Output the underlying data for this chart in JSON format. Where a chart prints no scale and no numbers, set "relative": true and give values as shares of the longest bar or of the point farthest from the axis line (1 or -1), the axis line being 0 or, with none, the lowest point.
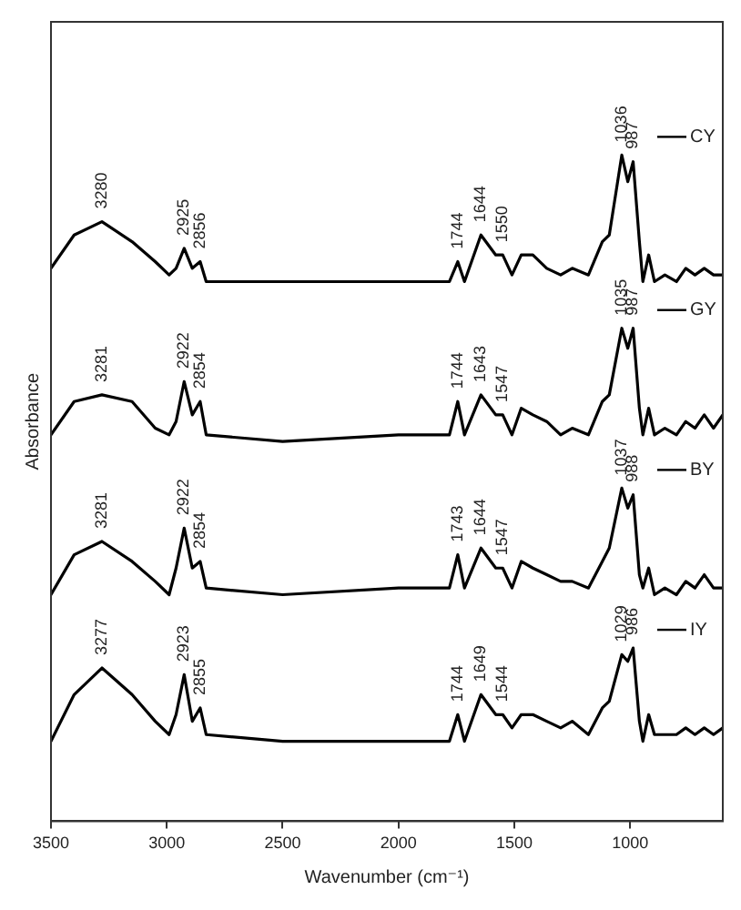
{
  "chart_data": {
    "type": "line",
    "relative": true,
    "xlabel": "Wavenumber (cm⁻¹)",
    "ylabel": "Absorbance",
    "xlim": [
      3500,
      600
    ],
    "xticks": [
      3500,
      3000,
      2500,
      2000,
      1500,
      1000
    ],
    "grid": false,
    "legend": "right",
    "x": [
      3500,
      3400,
      3280,
      3150,
      3050,
      2990,
      2960,
      2925,
      2890,
      2856,
      2830,
      2500,
      2000,
      1780,
      1744,
      1715,
      1644,
      1580,
      1550,
      1510,
      1470,
      1420,
      1360,
      1300,
      1250,
      1180,
      1120,
      1090,
      1036,
      1010,
      987,
      960,
      945,
      920,
      895,
      850,
      800,
      760,
      720,
      680,
      640,
      600
    ],
    "series": [
      {
        "name": "CY",
        "color": "#000000",
        "values": [
          0.83,
          0.88,
          0.9,
          0.87,
          0.84,
          0.82,
          0.83,
          0.86,
          0.83,
          0.84,
          0.81,
          0.81,
          0.81,
          0.81,
          0.84,
          0.81,
          0.88,
          0.85,
          0.85,
          0.82,
          0.85,
          0.85,
          0.83,
          0.82,
          0.83,
          0.82,
          0.87,
          0.88,
          1,
          0.96,
          0.99,
          0.87,
          0.81,
          0.85,
          0.81,
          0.82,
          0.81,
          0.83,
          0.82,
          0.83,
          0.82,
          0.82
        ]
      },
      {
        "name": "GY",
        "color": "#000000",
        "values": [
          0.58,
          0.63,
          0.64,
          0.63,
          0.59,
          0.58,
          0.6,
          0.66,
          0.61,
          0.63,
          0.58,
          0.57,
          0.58,
          0.58,
          0.63,
          0.58,
          0.64,
          0.61,
          0.61,
          0.58,
          0.62,
          0.61,
          0.6,
          0.58,
          0.59,
          0.58,
          0.63,
          0.64,
          0.74,
          0.71,
          0.74,
          0.62,
          0.58,
          0.62,
          0.58,
          0.59,
          0.58,
          0.6,
          0.59,
          0.61,
          0.59,
          0.61
        ]
      },
      {
        "name": "BY",
        "color": "#000000",
        "values": [
          0.34,
          0.4,
          0.42,
          0.39,
          0.36,
          0.34,
          0.38,
          0.44,
          0.38,
          0.39,
          0.35,
          0.34,
          0.35,
          0.35,
          0.4,
          0.35,
          0.41,
          0.38,
          0.38,
          0.35,
          0.39,
          0.38,
          0.37,
          0.36,
          0.36,
          0.35,
          0.39,
          0.41,
          0.5,
          0.47,
          0.49,
          0.37,
          0.35,
          0.38,
          0.34,
          0.35,
          0.34,
          0.36,
          0.35,
          0.37,
          0.35,
          0.35
        ]
      },
      {
        "name": "IY",
        "color": "#000000",
        "values": [
          0.12,
          0.19,
          0.23,
          0.19,
          0.15,
          0.13,
          0.16,
          0.22,
          0.15,
          0.17,
          0.13,
          0.12,
          0.12,
          0.12,
          0.16,
          0.12,
          0.19,
          0.16,
          0.16,
          0.14,
          0.16,
          0.16,
          0.15,
          0.14,
          0.15,
          0.13,
          0.17,
          0.18,
          0.25,
          0.24,
          0.26,
          0.15,
          0.12,
          0.16,
          0.13,
          0.13,
          0.13,
          0.14,
          0.13,
          0.14,
          0.13,
          0.14
        ]
      }
    ],
    "annotations": [
      {
        "text": "3280",
        "x": 3280,
        "y": 0.9
      },
      {
        "text": "2925",
        "x": 2925,
        "y": 0.86
      },
      {
        "text": "2856",
        "x": 2856,
        "y": 0.84
      },
      {
        "text": "1744",
        "x": 1744,
        "y": 0.84
      },
      {
        "text": "1644",
        "x": 1644,
        "y": 0.88
      },
      {
        "text": "1550",
        "x": 1550,
        "y": 0.85
      },
      {
        "text": "1036",
        "x": 1036,
        "y": 1
      },
      {
        "text": "987",
        "x": 987,
        "y": 0.99
      },
      {
        "text": "3281",
        "x": 3280,
        "y": 0.64
      },
      {
        "text": "2922",
        "x": 2925,
        "y": 0.66
      },
      {
        "text": "2854",
        "x": 2856,
        "y": 0.63
      },
      {
        "text": "1744",
        "x": 1744,
        "y": 0.63
      },
      {
        "text": "1643",
        "x": 1644,
        "y": 0.64
      },
      {
        "text": "1547",
        "x": 1550,
        "y": 0.61
      },
      {
        "text": "1035",
        "x": 1036,
        "y": 0.74
      },
      {
        "text": "987",
        "x": 987,
        "y": 0.74
      },
      {
        "text": "3281",
        "x": 3280,
        "y": 0.42
      },
      {
        "text": "2922",
        "x": 2925,
        "y": 0.44
      },
      {
        "text": "2854",
        "x": 2856,
        "y": 0.39
      },
      {
        "text": "1743",
        "x": 1744,
        "y": 0.4
      },
      {
        "text": "1644",
        "x": 1644,
        "y": 0.41
      },
      {
        "text": "1547",
        "x": 1550,
        "y": 0.38
      },
      {
        "text": "1037",
        "x": 1036,
        "y": 0.5
      },
      {
        "text": "988",
        "x": 987,
        "y": 0.49
      },
      {
        "text": "3277",
        "x": 3280,
        "y": 0.23
      },
      {
        "text": "2923",
        "x": 2925,
        "y": 0.22
      },
      {
        "text": "2855",
        "x": 2856,
        "y": 0.17
      },
      {
        "text": "1744",
        "x": 1744,
        "y": 0.16
      },
      {
        "text": "1649",
        "x": 1644,
        "y": 0.19
      },
      {
        "text": "1544",
        "x": 1550,
        "y": 0.16
      },
      {
        "text": "1029",
        "x": 1036,
        "y": 0.25
      },
      {
        "text": "986",
        "x": 987,
        "y": 0.26
      }
    ]
  }
}
